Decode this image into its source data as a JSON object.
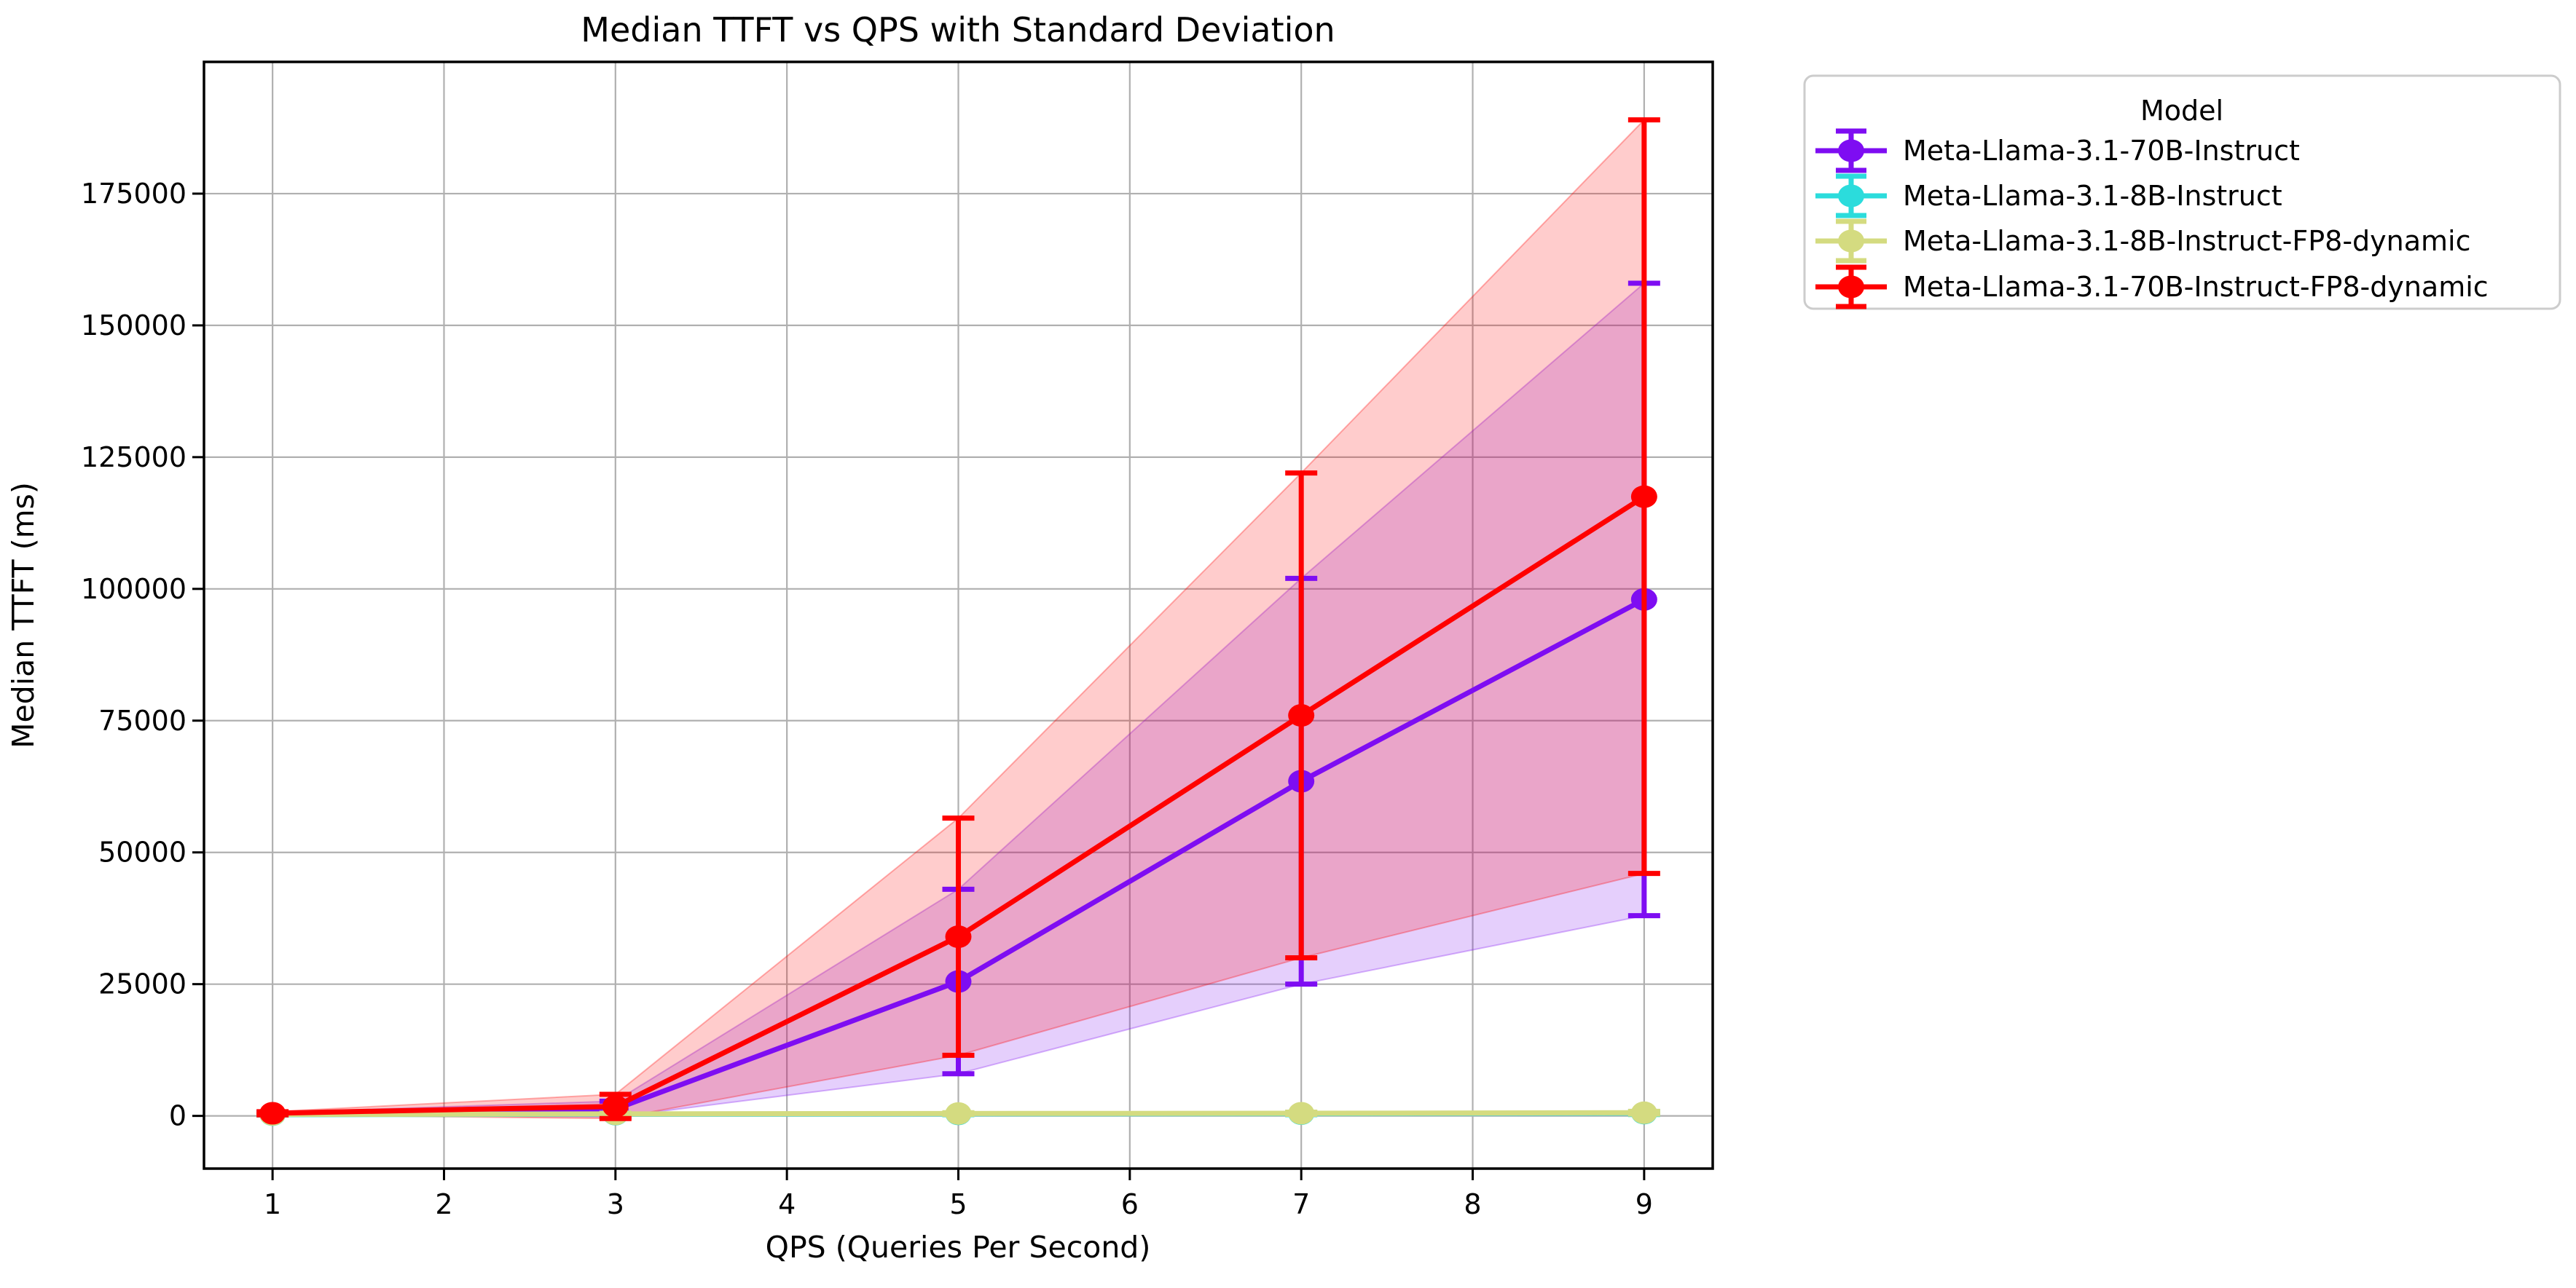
{
  "chart_data": {
    "type": "line",
    "title": "Median TTFT vs QPS with Standard Deviation",
    "xlabel": "QPS (Queries Per Second)",
    "ylabel": "Median TTFT (ms)",
    "x": [
      1,
      3,
      5,
      7,
      9
    ],
    "xticks": [
      1,
      2,
      3,
      4,
      5,
      6,
      7,
      8,
      9
    ],
    "yticks": [
      0,
      25000,
      50000,
      75000,
      100000,
      125000,
      150000,
      175000
    ],
    "xlim": [
      0.6,
      9.4
    ],
    "ylim": [
      -10000,
      200000
    ],
    "grid": true,
    "band_alpha": 0.2,
    "grid_color": "#b0b0b0",
    "legend": {
      "title": "Model",
      "position": "outside-upper-right"
    },
    "series": [
      {
        "name": "Meta-Llama-3.1-70B-Instruct",
        "color": "#7e0df2",
        "median": [
          400,
          1300,
          25500,
          63500,
          98000
        ],
        "std": [
          250,
          1500,
          17500,
          38500,
          60000
        ]
      },
      {
        "name": "Meta-Llama-3.1-8B-Instruct",
        "color": "#2bdcdc",
        "median": [
          230,
          320,
          380,
          430,
          520
        ],
        "std": [
          60,
          120,
          160,
          200,
          260
        ]
      },
      {
        "name": "Meta-Llama-3.1-8B-Instruct-FP8-dynamic",
        "color": "#d4db80",
        "median": [
          270,
          380,
          450,
          500,
          600
        ],
        "std": [
          60,
          120,
          160,
          200,
          260
        ]
      },
      {
        "name": "Meta-Llama-3.1-70B-Instruct-FP8-dynamic",
        "color": "#ff0000",
        "median": [
          500,
          1800,
          34000,
          76000,
          117500
        ],
        "std": [
          300,
          2300,
          22500,
          46000,
          71500
        ]
      }
    ]
  }
}
